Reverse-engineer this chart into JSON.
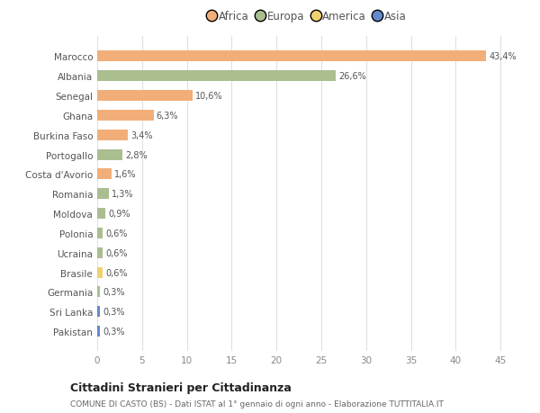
{
  "categories": [
    "Marocco",
    "Albania",
    "Senegal",
    "Ghana",
    "Burkina Faso",
    "Portogallo",
    "Costa d'Avorio",
    "Romania",
    "Moldova",
    "Polonia",
    "Ucraina",
    "Brasile",
    "Germania",
    "Sri Lanka",
    "Pakistan"
  ],
  "values": [
    43.4,
    26.6,
    10.6,
    6.3,
    3.4,
    2.8,
    1.6,
    1.3,
    0.9,
    0.6,
    0.6,
    0.6,
    0.3,
    0.3,
    0.3
  ],
  "labels": [
    "43,4%",
    "26,6%",
    "10,6%",
    "6,3%",
    "3,4%",
    "2,8%",
    "1,6%",
    "1,3%",
    "0,9%",
    "0,6%",
    "0,6%",
    "0,6%",
    "0,3%",
    "0,3%",
    "0,3%"
  ],
  "continents": [
    "Africa",
    "Europa",
    "Africa",
    "Africa",
    "Africa",
    "Europa",
    "Africa",
    "Europa",
    "Europa",
    "Europa",
    "Europa",
    "America",
    "Europa",
    "Asia",
    "Asia"
  ],
  "continent_colors": {
    "Africa": "#F2AE78",
    "Europa": "#AABE90",
    "America": "#F0D070",
    "Asia": "#6488CC"
  },
  "legend_items": [
    "Africa",
    "Europa",
    "America",
    "Asia"
  ],
  "legend_colors": [
    "#F2AE78",
    "#AABE90",
    "#F0D070",
    "#6488CC"
  ],
  "title": "Cittadini Stranieri per Cittadinanza",
  "subtitle": "COMUNE DI CASTO (BS) - Dati ISTAT al 1° gennaio di ogni anno - Elaborazione TUTTITALIA.IT",
  "xlim": [
    0,
    47
  ],
  "xticks": [
    0,
    5,
    10,
    15,
    20,
    25,
    30,
    35,
    40,
    45
  ],
  "background_color": "#ffffff",
  "grid_color": "#e0e0e0"
}
